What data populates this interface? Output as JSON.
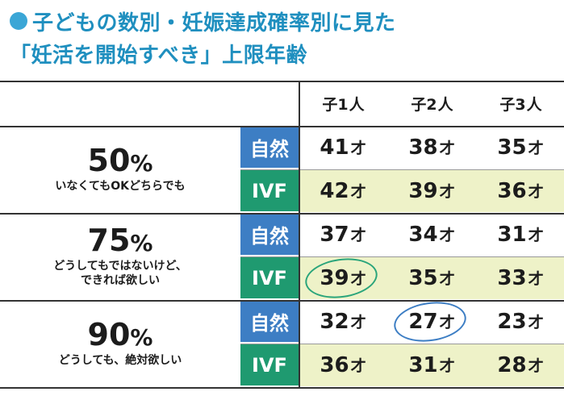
{
  "title": {
    "line1": "子どもの数別・妊娠達成確率別に見た",
    "line2": "「妊活を開始すべき」上限年齢"
  },
  "colors": {
    "title": "#1f8fbf",
    "natural_bg": "#3d7ec4",
    "ivf_bg": "#1f9a70",
    "ivf_row_bg": "#eef2c8",
    "circle_green": "#2aa57b",
    "circle_blue": "#3d7ec4"
  },
  "columns": [
    {
      "num": "子1",
      "unit": "人"
    },
    {
      "num": "子2",
      "unit": "人"
    },
    {
      "num": "子3",
      "unit": "人"
    }
  ],
  "age_unit": "才",
  "groups": [
    {
      "percent": "50",
      "percent_sign": "%",
      "desc_lines": [
        "いなくてもOKどちらでも"
      ],
      "rows": [
        {
          "method": "自然",
          "type": "natural",
          "values": [
            "41",
            "38",
            "35"
          ]
        },
        {
          "method": "IVF",
          "type": "ivf",
          "values": [
            "42",
            "39",
            "36"
          ]
        }
      ]
    },
    {
      "percent": "75",
      "percent_sign": "%",
      "desc_lines": [
        "どうしてもではないけど、",
        "できれば欲しい"
      ],
      "rows": [
        {
          "method": "自然",
          "type": "natural",
          "values": [
            "37",
            "34",
            "31"
          ]
        },
        {
          "method": "IVF",
          "type": "ivf",
          "values": [
            "39",
            "35",
            "33"
          ]
        }
      ]
    },
    {
      "percent": "90",
      "percent_sign": "%",
      "desc_lines": [
        "どうしても、絶対欲しい"
      ],
      "rows": [
        {
          "method": "自然",
          "type": "natural",
          "values": [
            "32",
            "27",
            "23"
          ]
        },
        {
          "method": "IVF",
          "type": "ivf",
          "values": [
            "36",
            "31",
            "28"
          ]
        }
      ]
    }
  ],
  "highlights": [
    {
      "group": 1,
      "row": 1,
      "col": 0,
      "color": "green"
    },
    {
      "group": 2,
      "row": 0,
      "col": 1,
      "color": "blue"
    }
  ]
}
